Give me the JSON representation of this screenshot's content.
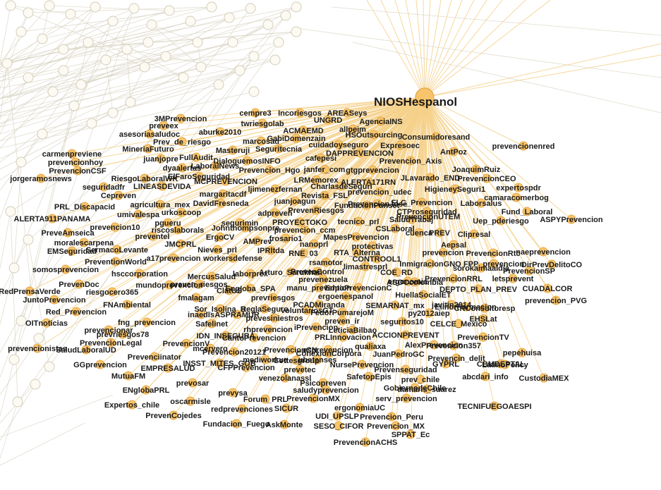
{
  "hub": {
    "label": "NIOSHespanol"
  },
  "nodes": [
    {
      "label": "cempre3"
    },
    {
      "label": "Incoriesgos"
    },
    {
      "label": "AREASeys"
    },
    {
      "label": "3MPrevencion"
    },
    {
      "label": "twriesgolab"
    },
    {
      "label": "UNGRD"
    },
    {
      "label": "AgenciaINS"
    },
    {
      "label": "preveex"
    },
    {
      "label": "ACMAEMD"
    },
    {
      "label": "allpeim"
    },
    {
      "label": "asesoriasaludoc"
    },
    {
      "label": "aburke2010"
    },
    {
      "label": "GabiDomenzain"
    },
    {
      "label": "HSOutsourcing"
    },
    {
      "label": "Consumidoresand"
    },
    {
      "label": "Prev_de_riesgo"
    },
    {
      "label": "marcosad"
    },
    {
      "label": "cuidadoyseguro"
    },
    {
      "label": "Expresoec"
    },
    {
      "label": "MineriaFuturo"
    },
    {
      "label": "Masteruji"
    },
    {
      "label": "Seguritecnia"
    },
    {
      "label": "DAPPREVENCION"
    },
    {
      "label": "AntPoz"
    },
    {
      "label": "prevencionenred"
    },
    {
      "label": "carmenpreviene"
    },
    {
      "label": "juanjopre"
    },
    {
      "label": "FullAudit"
    },
    {
      "label": "DialoguemosINFO"
    },
    {
      "label": "cafepesi"
    },
    {
      "label": "Prevencion_Axis"
    },
    {
      "label": "prevencionhoy"
    },
    {
      "label": "LaboralNews"
    },
    {
      "label": "Prevencion_Hgo"
    },
    {
      "label": "JoaquimRuiz"
    },
    {
      "label": "PrevencionCSF"
    },
    {
      "label": "dyaalertas"
    },
    {
      "label": "janfer_com"
    },
    {
      "label": "gtgprevencion"
    },
    {
      "label": "RiesgoLaboralWK"
    },
    {
      "label": "ElFaroSeguridad"
    },
    {
      "label": "PrevencionCEO"
    },
    {
      "label": "jorgeramosnews"
    },
    {
      "label": "ALERTA171RN"
    },
    {
      "label": "JLavarado_END"
    },
    {
      "label": "seguridadfr"
    },
    {
      "label": "LINEASDEVIDA"
    },
    {
      "label": "MCPREVENCION"
    },
    {
      "label": "ljimenezfernan"
    },
    {
      "label": "LRMemorex"
    },
    {
      "label": "CharlasdeSeguri"
    },
    {
      "label": "expertospdr"
    },
    {
      "label": "Cepreven"
    },
    {
      "label": "margaritacdf"
    },
    {
      "label": "Revista_FSL"
    },
    {
      "label": "prevencion_udec"
    },
    {
      "label": "HigieneySeguri1"
    },
    {
      "label": "camaracomerbog"
    },
    {
      "label": "PRL_Discapacid"
    },
    {
      "label": "agricultura_mex"
    },
    {
      "label": "DavidFresneda"
    },
    {
      "label": "juanjoagun"
    },
    {
      "label": "FundacionPunset"
    },
    {
      "label": "FLC_Prevencion"
    },
    {
      "label": "Laborsalus"
    },
    {
      "label": "ALERTA911PANAMA"
    },
    {
      "label": "umivalespa"
    },
    {
      "label": "urkoscoop"
    },
    {
      "label": "adpreven"
    },
    {
      "label": "PrevenRiesgos"
    },
    {
      "label": "PrevencionJose"
    },
    {
      "label": "CTProseguridad"
    },
    {
      "label": "Fund_Laboral"
    },
    {
      "label": "pgueru"
    },
    {
      "label": "segurimin"
    },
    {
      "label": "PROYECTOKO"
    },
    {
      "label": "tecnico_prl"
    },
    {
      "label": "SaludTrabaj"
    },
    {
      "label": "PrevencionUTEM"
    },
    {
      "label": "ASPYPrevencion"
    },
    {
      "label": "PreveAmseica"
    },
    {
      "label": "prevencion10"
    },
    {
      "label": "riscoslaborals"
    },
    {
      "label": "Johnthompsonpre"
    },
    {
      "label": "prevencion_ccm"
    },
    {
      "label": "CSLaboral"
    },
    {
      "label": "Uep_pderiesgo"
    },
    {
      "label": "preventel"
    },
    {
      "label": "ErgoCV"
    },
    {
      "label": "frosario1"
    },
    {
      "label": "MapesPrevencion"
    },
    {
      "label": "cuenca"
    },
    {
      "label": "PREV"
    },
    {
      "label": "Clipresal"
    },
    {
      "label": "moralescarpena"
    },
    {
      "label": "JMCPRL"
    },
    {
      "label": "AMPrev"
    },
    {
      "label": "nanoprl"
    },
    {
      "label": "protectivas"
    },
    {
      "label": "Aepsal"
    },
    {
      "label": "EMSeguridad"
    },
    {
      "label": "SermacoLevante"
    },
    {
      "label": "Nieves_prl"
    },
    {
      "label": "IPRltda"
    },
    {
      "label": "RNE_03"
    },
    {
      "label": "RTA_Alterna"
    },
    {
      "label": "CONTROOL1"
    },
    {
      "label": "prevencion"
    },
    {
      "label": "PrevencionRtc"
    },
    {
      "label": "naeprevencion"
    },
    {
      "label": "PreventionWorld"
    },
    {
      "label": "a17prevencion"
    },
    {
      "label": "workersdefense"
    },
    {
      "label": "rsamotor"
    },
    {
      "label": "InmigracionGNO"
    },
    {
      "label": "FPP_prevencion"
    },
    {
      "label": "DirPrevDelitoCO"
    },
    {
      "label": "somosprevencion"
    },
    {
      "label": "Arturo_Sarukhan"
    },
    {
      "label": "limastresprl"
    },
    {
      "label": "sorokaimaaldia"
    },
    {
      "label": "PrevencionSP"
    },
    {
      "label": "hsccorporation"
    },
    {
      "label": "laborprex"
    },
    {
      "label": "PrevenControl"
    },
    {
      "label": "COE_RD"
    },
    {
      "label": "letsprevent"
    },
    {
      "label": "PrevencionRRL"
    },
    {
      "label": "PrevenDoc"
    },
    {
      "label": "preven_riesgos"
    },
    {
      "label": "MercusSalud"
    },
    {
      "label": "prevenezuela"
    },
    {
      "label": "ergonomia"
    },
    {
      "label": "ASOCcolombia"
    },
    {
      "label": "RedPrensaVerde"
    },
    {
      "label": "riesgocero365"
    },
    {
      "label": "mundoprevencion"
    },
    {
      "label": "ClatUS"
    },
    {
      "label": "EngIoba_SPA"
    },
    {
      "label": "manu_prevention"
    },
    {
      "label": "EdpoPrevencionC"
    },
    {
      "label": "DEPTO_PLAN_PREV"
    },
    {
      "label": "CUADALCOR"
    },
    {
      "label": "JuntoPrevencion"
    },
    {
      "label": "fmalagam"
    },
    {
      "label": "prevriesgos"
    },
    {
      "label": "ergoenespanol"
    },
    {
      "label": "HuellaSocialET"
    },
    {
      "label": "prevencion_PVG"
    },
    {
      "label": "FNAmbiental"
    },
    {
      "label": "ReglaSeguro"
    },
    {
      "label": "PCADMiranda"
    },
    {
      "label": "SEMARNAT_mx"
    },
    {
      "label": "javitin2014"
    },
    {
      "label": "ElinorFormacion"
    },
    {
      "label": "Red_Prevencion"
    },
    {
      "label": "Sor_Isolina_B"
    },
    {
      "label": "VoluntariosGT"
    },
    {
      "label": "FedorPumarejoM"
    },
    {
      "label": "py2012aiep"
    },
    {
      "label": "CRConsultoresp"
    },
    {
      "label": "OITnoticias"
    },
    {
      "label": "inaedis"
    },
    {
      "label": "ASPRAMUR"
    },
    {
      "label": "prevesiniestros"
    },
    {
      "label": "preven_ir"
    },
    {
      "label": "seguritos10"
    },
    {
      "label": "EHSLat"
    },
    {
      "label": "prevencionar"
    },
    {
      "label": "fng_prevencion"
    },
    {
      "label": "Safelinet"
    },
    {
      "label": "CELCE_Mexico"
    },
    {
      "label": "prevriesgos78"
    },
    {
      "label": "rhprevencion"
    },
    {
      "label": "iPrevencion"
    },
    {
      "label": "LeticiaBilbao"
    },
    {
      "label": "PrevencionTV"
    },
    {
      "label": "PrevencionLegal"
    },
    {
      "label": "IDN_INSEGURA"
    },
    {
      "label": "CantoPrevencion"
    },
    {
      "label": "PRLInnovacion"
    },
    {
      "label": "ACCIONPREVENT"
    },
    {
      "label": "prevencionistas"
    },
    {
      "label": "PrevencionV"
    },
    {
      "label": "SaludLaboralUD"
    },
    {
      "label": "mcervero"
    },
    {
      "label": "AlexPrevencion"
    },
    {
      "label": "qualiaxa"
    },
    {
      "label": "Prevencion357"
    },
    {
      "label": "Prevencion20121"
    },
    {
      "label": "PrevencionCN"
    },
    {
      "label": "pepehuisa"
    },
    {
      "label": "Prevenciinator"
    },
    {
      "label": "mediworkve"
    },
    {
      "label": "esprevencion"
    },
    {
      "label": "ConexionCorpora"
    },
    {
      "label": "JuanPedroGC"
    },
    {
      "label": "Prevencin_delit"
    },
    {
      "label": "GGprevencion"
    },
    {
      "label": "INSST_MITES_GOB"
    },
    {
      "label": "Cottesgroup"
    },
    {
      "label": "ubetenses"
    },
    {
      "label": "NursePrevencion"
    },
    {
      "label": "GYPRL"
    },
    {
      "label": "CBMDEPTAL"
    },
    {
      "label": "LatinoPolicy"
    },
    {
      "label": "EMPRESALUD"
    },
    {
      "label": "CFPPrevencion"
    },
    {
      "label": "prevetec"
    },
    {
      "label": "Prevenseguridad"
    },
    {
      "label": "SafetopEpis"
    },
    {
      "label": "prev_chile"
    },
    {
      "label": "abcdari_info"
    },
    {
      "label": "CustodiaMEX"
    },
    {
      "label": "MutuaFM"
    },
    {
      "label": "prevosar"
    },
    {
      "label": "venezolanassl"
    },
    {
      "label": "Psicopreven"
    },
    {
      "label": "GobiernodeChile"
    },
    {
      "label": "damaris_suarez"
    },
    {
      "label": "ENglobaPRL"
    },
    {
      "label": "prevysa"
    },
    {
      "label": "saludyprevencion"
    },
    {
      "label": "oscarmisle"
    },
    {
      "label": "Forum_PRL"
    },
    {
      "label": "PrevencionMX"
    },
    {
      "label": "serv_prevencion"
    },
    {
      "label": "TECNIFUEGOAESPI"
    },
    {
      "label": "Expertos_chile"
    },
    {
      "label": "ergonomiaUC"
    },
    {
      "label": "PrevenCojedes"
    },
    {
      "label": "redprevenciones"
    },
    {
      "label": "SICUR"
    },
    {
      "label": "UDI_UPSLP"
    },
    {
      "label": "Prevencion_Peru"
    },
    {
      "label": "Fundacion_Fuego"
    },
    {
      "label": "AskMonte"
    },
    {
      "label": "SESO_CIFOR"
    },
    {
      "label": "Prevencion_MX"
    },
    {
      "label": "SPPAT_Ec"
    },
    {
      "label": "PrevencionACHS"
    }
  ]
}
